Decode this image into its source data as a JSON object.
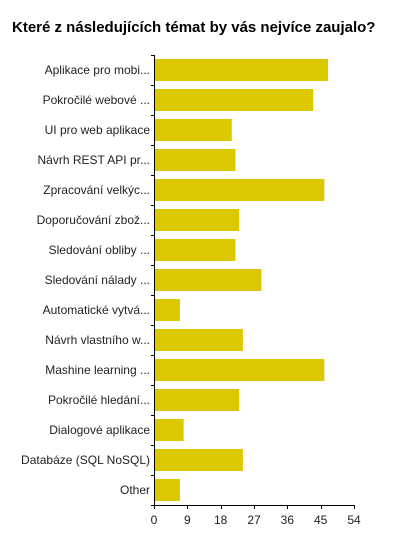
{
  "chart_data": {
    "type": "bar",
    "orientation": "horizontal",
    "title": "Které z následujících témat by vás nejvíce zaujalo?",
    "categories": [
      "Aplikace pro mobi...",
      "Pokročilé webové ...",
      "UI pro web aplikace",
      "Návrh REST API pr...",
      "Zpracování velkýc...",
      "Doporučování zbož...",
      "Sledování obliby ...",
      "Sledování nálady ...",
      "Automatické vytvá...",
      "Návrh vlastního w...",
      "Mashine learning ...",
      "Pokročilé hledání...",
      "Dialogové aplikace",
      "Databáze (SQL NoSQL)",
      "Other"
    ],
    "values": [
      47,
      43,
      21,
      22,
      46,
      23,
      22,
      29,
      7,
      24,
      46,
      23,
      8,
      24,
      7
    ],
    "xlim": [
      0,
      54
    ],
    "xticks": [
      0,
      9,
      18,
      27,
      36,
      45,
      54
    ],
    "bar_color": "#dcc800",
    "axis_color": "#000000",
    "grid": false
  }
}
